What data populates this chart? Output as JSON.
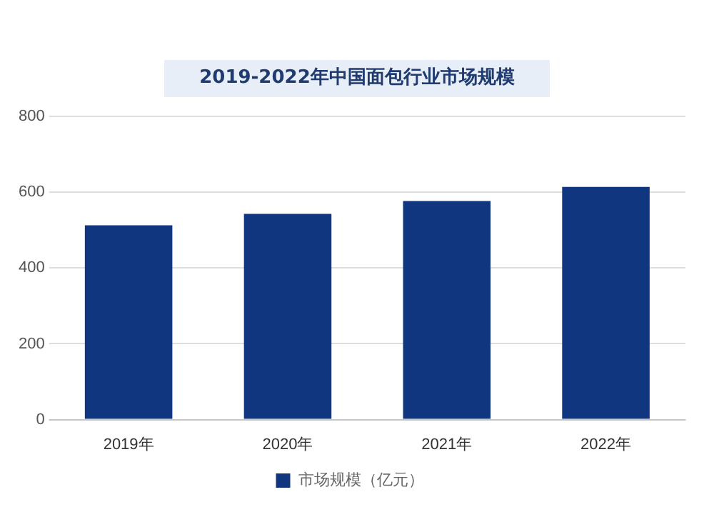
{
  "chart_data": {
    "type": "bar",
    "title": "2019-2022年中国面包行业市场规模",
    "categories": [
      "2019年",
      "2020年",
      "2021年",
      "2022年"
    ],
    "series": [
      {
        "name": "市场规模（亿元）",
        "color": "#10367f",
        "values": [
          513,
          543,
          577,
          614
        ]
      }
    ],
    "ylim": [
      0,
      800
    ],
    "yticks": [
      0,
      200,
      400,
      600,
      800
    ],
    "grid": "y",
    "legend": "bottom"
  }
}
